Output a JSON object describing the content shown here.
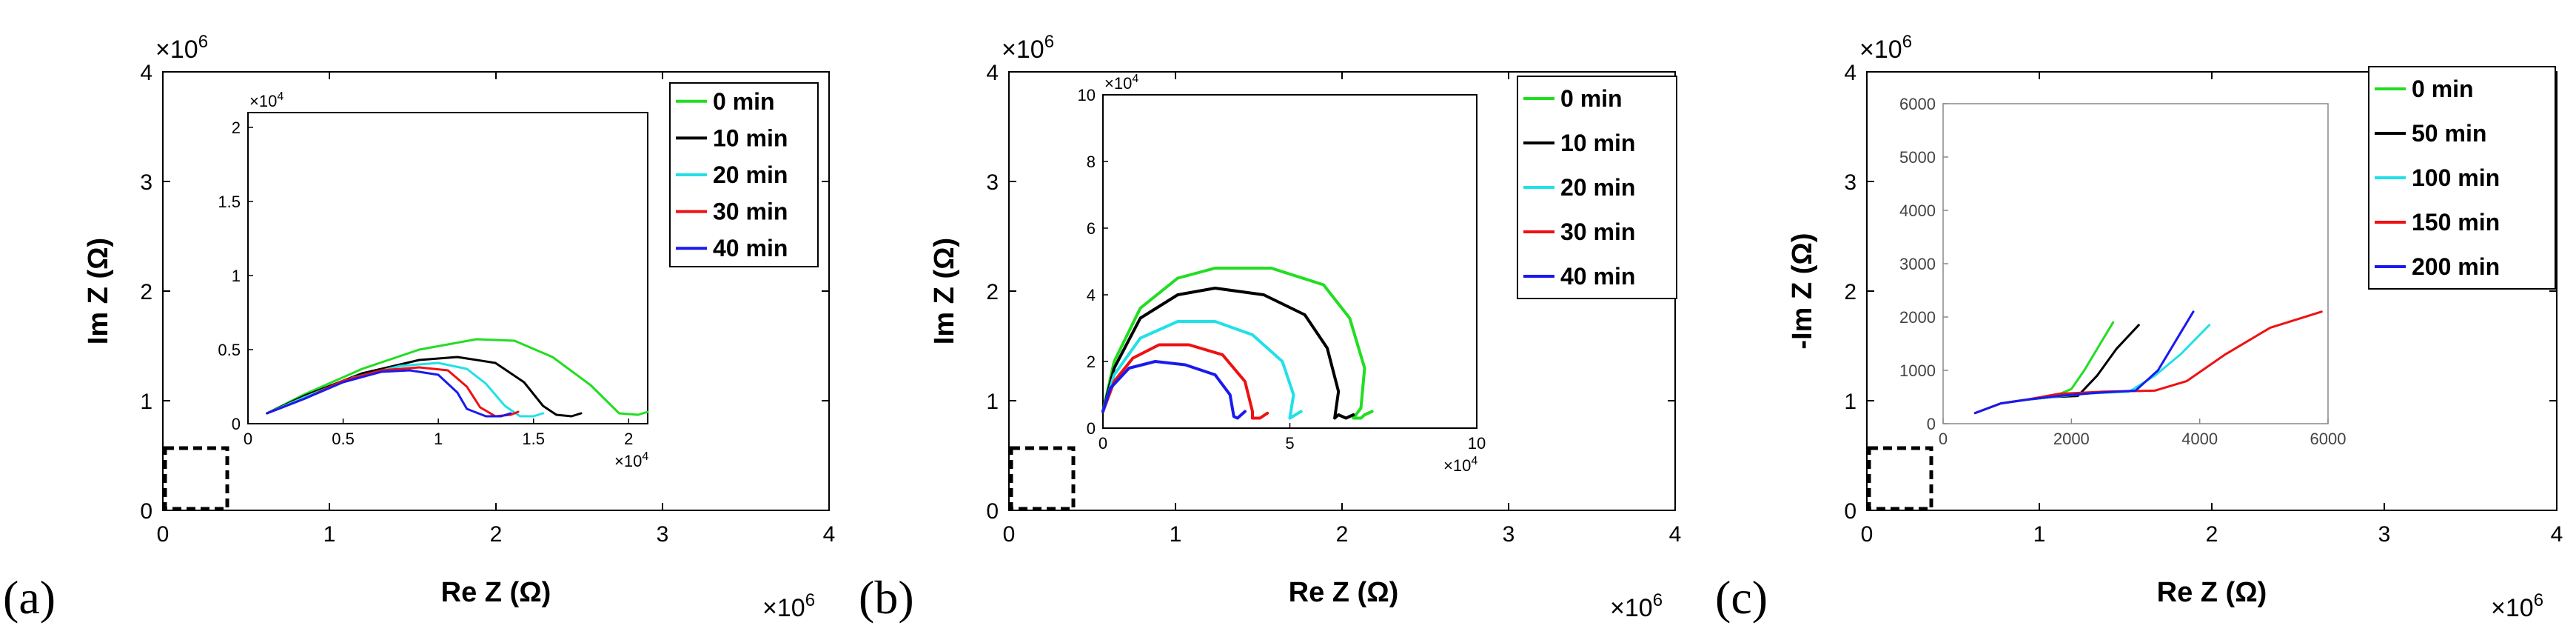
{
  "chart_data": [
    {
      "type": "line",
      "panel_label": "(a)",
      "xlabel": "Re Z (Ω)",
      "ylabel": "Im Z (Ω)",
      "xlim": [
        0,
        4
      ],
      "ylim": [
        0,
        4
      ],
      "x_ticks": [
        "0",
        "1",
        "2",
        "3",
        "4"
      ],
      "y_ticks": [
        "0",
        "1",
        "2",
        "3",
        "4"
      ],
      "x_multiplier": "×10^6",
      "y_multiplier": "×10^6",
      "legend": {
        "placement": "top-right",
        "entries": [
          {
            "name": "0 min",
            "color": "#22dd22"
          },
          {
            "name": "10 min",
            "color": "#000000"
          },
          {
            "name": "20 min",
            "color": "#22e0e8"
          },
          {
            "name": "30 min",
            "color": "#ee1111"
          },
          {
            "name": "40 min",
            "color": "#1a1aee"
          }
        ]
      },
      "inset": {
        "xlim": [
          0,
          2.1
        ],
        "ylim": [
          0,
          2.1
        ],
        "x_ticks": [
          "0",
          "0.5",
          "1",
          "1.5",
          "2"
        ],
        "y_ticks": [
          "0",
          "0.5",
          "1",
          "1.5",
          "2"
        ],
        "x_multiplier": "×10^4",
        "y_multiplier": "×10^4",
        "series": [
          {
            "name": "0 min",
            "color": "#22dd22",
            "points": [
              [
                0.1,
                0.07
              ],
              [
                0.3,
                0.2
              ],
              [
                0.6,
                0.37
              ],
              [
                0.9,
                0.5
              ],
              [
                1.2,
                0.57
              ],
              [
                1.4,
                0.56
              ],
              [
                1.6,
                0.45
              ],
              [
                1.8,
                0.26
              ],
              [
                1.95,
                0.07
              ],
              [
                2.05,
                0.06
              ],
              [
                2.1,
                0.08
              ]
            ]
          },
          {
            "name": "10 min",
            "color": "#000000",
            "points": [
              [
                0.1,
                0.07
              ],
              [
                0.3,
                0.19
              ],
              [
                0.6,
                0.34
              ],
              [
                0.9,
                0.43
              ],
              [
                1.1,
                0.45
              ],
              [
                1.3,
                0.41
              ],
              [
                1.45,
                0.28
              ],
              [
                1.55,
                0.12
              ],
              [
                1.62,
                0.06
              ],
              [
                1.7,
                0.05
              ],
              [
                1.75,
                0.07
              ]
            ]
          },
          {
            "name": "20 min",
            "color": "#22e0e8",
            "points": [
              [
                0.1,
                0.07
              ],
              [
                0.3,
                0.18
              ],
              [
                0.55,
                0.31
              ],
              [
                0.8,
                0.39
              ],
              [
                1.0,
                0.41
              ],
              [
                1.15,
                0.37
              ],
              [
                1.25,
                0.27
              ],
              [
                1.35,
                0.12
              ],
              [
                1.43,
                0.05
              ],
              [
                1.5,
                0.05
              ],
              [
                1.55,
                0.07
              ]
            ]
          },
          {
            "name": "30 min",
            "color": "#ee1111",
            "points": [
              [
                0.1,
                0.07
              ],
              [
                0.3,
                0.17
              ],
              [
                0.5,
                0.29
              ],
              [
                0.7,
                0.36
              ],
              [
                0.9,
                0.38
              ],
              [
                1.05,
                0.36
              ],
              [
                1.15,
                0.25
              ],
              [
                1.22,
                0.11
              ],
              [
                1.3,
                0.05
              ],
              [
                1.38,
                0.06
              ],
              [
                1.42,
                0.08
              ]
            ]
          },
          {
            "name": "40 min",
            "color": "#1a1aee",
            "points": [
              [
                0.1,
                0.07
              ],
              [
                0.3,
                0.17
              ],
              [
                0.5,
                0.28
              ],
              [
                0.7,
                0.35
              ],
              [
                0.85,
                0.36
              ],
              [
                1.0,
                0.33
              ],
              [
                1.1,
                0.21
              ],
              [
                1.15,
                0.1
              ],
              [
                1.25,
                0.05
              ],
              [
                1.33,
                0.05
              ],
              [
                1.38,
                0.07
              ]
            ]
          }
        ]
      }
    },
    {
      "type": "line",
      "panel_label": "(b)",
      "xlabel": "Re Z (Ω)",
      "ylabel": "Im Z (Ω)",
      "xlim": [
        0,
        4
      ],
      "ylim": [
        0,
        4
      ],
      "x_ticks": [
        "0",
        "1",
        "2",
        "3",
        "4"
      ],
      "y_ticks": [
        "0",
        "1",
        "2",
        "3",
        "4"
      ],
      "x_multiplier": "×10^6",
      "y_multiplier": "×10^6",
      "legend": {
        "placement": "top-right",
        "entries": [
          {
            "name": "0 min",
            "color": "#22dd22"
          },
          {
            "name": "10 min",
            "color": "#000000"
          },
          {
            "name": "20 min",
            "color": "#22e0e8"
          },
          {
            "name": "30 min",
            "color": "#ee1111"
          },
          {
            "name": "40 min",
            "color": "#1a1aee"
          }
        ]
      },
      "inset": {
        "xlim": [
          0,
          10
        ],
        "ylim": [
          0,
          10
        ],
        "x_ticks": [
          "0",
          "5",
          "10"
        ],
        "y_ticks": [
          "0",
          "2",
          "4",
          "6",
          "8",
          "10"
        ],
        "x_multiplier": "×10^4",
        "y_multiplier": "×10^4",
        "series": [
          {
            "name": "0 min",
            "color": "#22dd22",
            "points": [
              [
                0,
                0.5
              ],
              [
                0.3,
                2.0
              ],
              [
                1.0,
                3.6
              ],
              [
                2.0,
                4.5
              ],
              [
                3.0,
                4.8
              ],
              [
                4.5,
                4.8
              ],
              [
                5.9,
                4.3
              ],
              [
                6.6,
                3.3
              ],
              [
                7.0,
                1.8
              ],
              [
                6.9,
                0.6
              ],
              [
                6.7,
                0.3
              ],
              [
                6.9,
                0.3
              ],
              [
                7.0,
                0.4
              ],
              [
                7.2,
                0.5
              ]
            ]
          },
          {
            "name": "10 min",
            "color": "#000000",
            "points": [
              [
                0,
                0.5
              ],
              [
                0.3,
                1.8
              ],
              [
                1.0,
                3.3
              ],
              [
                2.0,
                4.0
              ],
              [
                3.0,
                4.2
              ],
              [
                4.3,
                4.0
              ],
              [
                5.4,
                3.4
              ],
              [
                6.0,
                2.4
              ],
              [
                6.3,
                1.1
              ],
              [
                6.2,
                0.3
              ],
              [
                6.3,
                0.4
              ],
              [
                6.5,
                0.3
              ],
              [
                6.7,
                0.4
              ]
            ]
          },
          {
            "name": "20 min",
            "color": "#22e0e8",
            "points": [
              [
                0,
                0.5
              ],
              [
                0.3,
                1.6
              ],
              [
                1.0,
                2.7
              ],
              [
                2.0,
                3.2
              ],
              [
                3.0,
                3.2
              ],
              [
                4.0,
                2.8
              ],
              [
                4.8,
                2.0
              ],
              [
                5.1,
                1.0
              ],
              [
                5.0,
                0.3
              ],
              [
                5.15,
                0.4
              ],
              [
                5.3,
                0.5
              ]
            ]
          },
          {
            "name": "30 min",
            "color": "#ee1111",
            "points": [
              [
                0,
                0.5
              ],
              [
                0.3,
                1.4
              ],
              [
                0.8,
                2.1
              ],
              [
                1.5,
                2.5
              ],
              [
                2.3,
                2.5
              ],
              [
                3.2,
                2.2
              ],
              [
                3.8,
                1.4
              ],
              [
                4.0,
                0.5
              ],
              [
                4.0,
                0.3
              ],
              [
                4.2,
                0.3
              ],
              [
                4.4,
                0.45
              ]
            ]
          },
          {
            "name": "40 min",
            "color": "#1a1aee",
            "points": [
              [
                0,
                0.5
              ],
              [
                0.2,
                1.2
              ],
              [
                0.7,
                1.8
              ],
              [
                1.4,
                2.0
              ],
              [
                2.2,
                1.9
              ],
              [
                3.0,
                1.6
              ],
              [
                3.4,
                1.0
              ],
              [
                3.5,
                0.35
              ],
              [
                3.6,
                0.3
              ],
              [
                3.8,
                0.5
              ]
            ]
          }
        ]
      }
    },
    {
      "type": "line",
      "panel_label": "(c)",
      "xlabel": "Re Z (Ω)",
      "ylabel": "-Im Z (Ω)",
      "xlim": [
        0,
        4
      ],
      "ylim": [
        0,
        4
      ],
      "x_ticks": [
        "0",
        "1",
        "2",
        "3",
        "4"
      ],
      "y_ticks": [
        "0",
        "1",
        "2",
        "3",
        "4"
      ],
      "x_multiplier": "×10^6",
      "y_multiplier": "×10^6",
      "legend": {
        "placement": "top-right",
        "entries": [
          {
            "name": "0 min",
            "color": "#22dd22"
          },
          {
            "name": "50 min",
            "color": "#000000"
          },
          {
            "name": "100 min",
            "color": "#22e0e8"
          },
          {
            "name": "150 min",
            "color": "#ee1111"
          },
          {
            "name": "200 min",
            "color": "#1a1aee"
          }
        ]
      },
      "inset": {
        "xlim": [
          0,
          6000
        ],
        "ylim": [
          0,
          6000
        ],
        "x_ticks": [
          "0",
          "2000",
          "4000",
          "6000"
        ],
        "y_ticks": [
          "0",
          "1000",
          "2000",
          "3000",
          "4000",
          "5000",
          "6000"
        ],
        "series": [
          {
            "name": "0 min",
            "color": "#22dd22",
            "points": [
              [
                500,
                200
              ],
              [
                900,
                380
              ],
              [
                1300,
                450
              ],
              [
                1700,
                500
              ],
              [
                2000,
                650
              ],
              [
                2200,
                1000
              ],
              [
                2450,
                1500
              ],
              [
                2650,
                1900
              ]
            ]
          },
          {
            "name": "50 min",
            "color": "#000000",
            "points": [
              [
                500,
                200
              ],
              [
                900,
                380
              ],
              [
                1300,
                450
              ],
              [
                1700,
                500
              ],
              [
                2100,
                520
              ],
              [
                2400,
                900
              ],
              [
                2700,
                1400
              ],
              [
                3050,
                1850
              ]
            ]
          },
          {
            "name": "100 min",
            "color": "#22e0e8",
            "points": [
              [
                500,
                200
              ],
              [
                900,
                380
              ],
              [
                1300,
                450
              ],
              [
                1700,
                500
              ],
              [
                2300,
                570
              ],
              [
                2900,
                600
              ],
              [
                3300,
                900
              ],
              [
                3700,
                1300
              ],
              [
                4150,
                1850
              ]
            ]
          },
          {
            "name": "150 min",
            "color": "#ee1111",
            "points": [
              [
                500,
                200
              ],
              [
                900,
                380
              ],
              [
                1300,
                450
              ],
              [
                1800,
                560
              ],
              [
                2500,
                600
              ],
              [
                3300,
                620
              ],
              [
                3800,
                800
              ],
              [
                4400,
                1300
              ],
              [
                5100,
                1800
              ],
              [
                5900,
                2100
              ]
            ]
          },
          {
            "name": "200 min",
            "color": "#1a1aee",
            "points": [
              [
                500,
                200
              ],
              [
                900,
                380
              ],
              [
                1300,
                450
              ],
              [
                1800,
                520
              ],
              [
                2400,
                580
              ],
              [
                3000,
                620
              ],
              [
                3350,
                1000
              ],
              [
                3650,
                1600
              ],
              [
                3900,
                2100
              ]
            ]
          }
        ]
      }
    }
  ]
}
